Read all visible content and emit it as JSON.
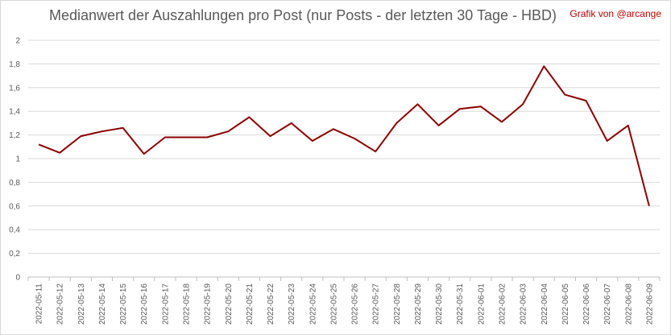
{
  "chart_data": {
    "type": "line",
    "title": "Medianwert der Auszahlungen pro Post (nur Posts - der letzten 30 Tage - HBD)",
    "annotation": "Grafik von @arcange",
    "xlabel": "",
    "ylabel": "",
    "ylim": [
      0,
      2
    ],
    "y_ticks": [
      "0",
      "0,2",
      "0,4",
      "0,6",
      "0,8",
      "1",
      "1,2",
      "1,4",
      "1,6",
      "1,8",
      "2"
    ],
    "grid": true,
    "legend": "none",
    "series_color": "#8b0000",
    "categories": [
      "2022-05-11",
      "2022-05-12",
      "2022-05-13",
      "2022-05-14",
      "2022-05-15",
      "2022-05-16",
      "2022-05-17",
      "2022-05-18",
      "2022-05-19",
      "2022-05-20",
      "2022-05-21",
      "2022-05-22",
      "2022-05-23",
      "2022-05-24",
      "2022-05-25",
      "2022-05-26",
      "2022-05-27",
      "2022-05-28",
      "2022-05-29",
      "2022-05-30",
      "2022-05-31",
      "2022-06-01",
      "2022-06-02",
      "2022-06-03",
      "2022-06-04",
      "2022-06-05",
      "2022-06-06",
      "2022-06-07",
      "2022-06-08",
      "2022-06-09"
    ],
    "values": [
      1.12,
      1.05,
      1.19,
      1.23,
      1.26,
      1.04,
      1.18,
      1.18,
      1.18,
      1.23,
      1.35,
      1.19,
      1.3,
      1.15,
      1.25,
      1.17,
      1.06,
      1.3,
      1.46,
      1.28,
      1.42,
      1.44,
      1.31,
      1.46,
      1.78,
      1.54,
      1.49,
      1.15,
      1.28,
      0.6
    ]
  }
}
